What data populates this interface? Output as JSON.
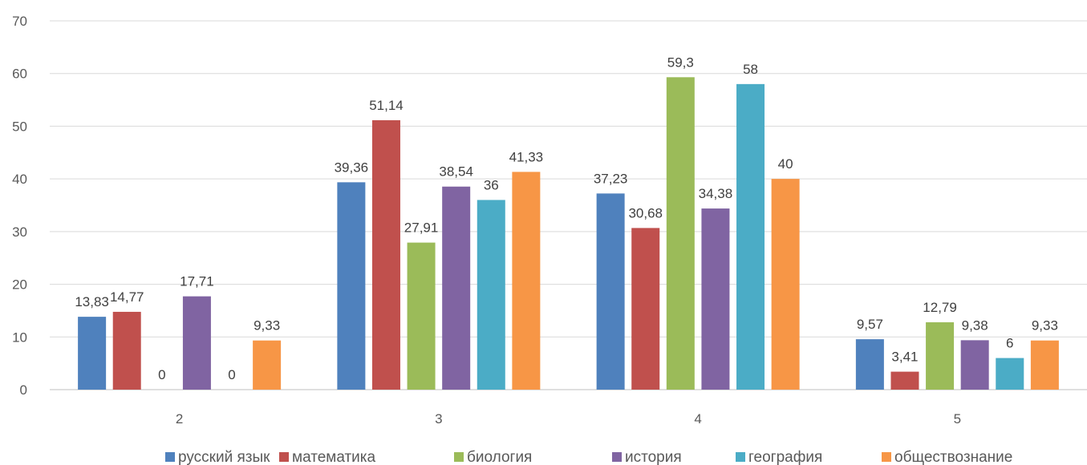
{
  "chart_data": {
    "type": "bar",
    "categories": [
      "2",
      "3",
      "4",
      "5"
    ],
    "series": [
      {
        "name": "русский язык",
        "color": "#4f81bd",
        "values": [
          13.83,
          39.36,
          37.23,
          9.57
        ],
        "labels": [
          "13,83",
          "39,36",
          "37,23",
          "9,57"
        ]
      },
      {
        "name": "математика",
        "color": "#c0504d",
        "values": [
          14.77,
          51.14,
          30.68,
          3.41
        ],
        "labels": [
          "14,77",
          "51,14",
          "30,68",
          "3,41"
        ]
      },
      {
        "name": "биология",
        "color": "#9bbb59",
        "values": [
          0,
          27.91,
          59.3,
          12.79
        ],
        "labels": [
          "0",
          "27,91",
          "59,3",
          "12,79"
        ]
      },
      {
        "name": "история",
        "color": "#8064a2",
        "values": [
          17.71,
          38.54,
          34.38,
          9.38
        ],
        "labels": [
          "17,71",
          "38,54",
          "34,38",
          "9,38"
        ]
      },
      {
        "name": "география",
        "color": "#4bacc6",
        "values": [
          0,
          36,
          58,
          6
        ],
        "labels": [
          "0",
          "36",
          "58",
          "6"
        ]
      },
      {
        "name": "обществознание",
        "color": "#f79646",
        "values": [
          9.33,
          41.33,
          40,
          9.33
        ],
        "labels": [
          "9,33",
          "41,33",
          "40",
          "9,33"
        ]
      }
    ],
    "title": "",
    "xlabel": "",
    "ylabel": "",
    "ylim": [
      0,
      70
    ],
    "yticks": [
      "0",
      "10",
      "20",
      "30",
      "40",
      "50",
      "60",
      "70"
    ],
    "grid": true,
    "legend_position": "bottom"
  }
}
